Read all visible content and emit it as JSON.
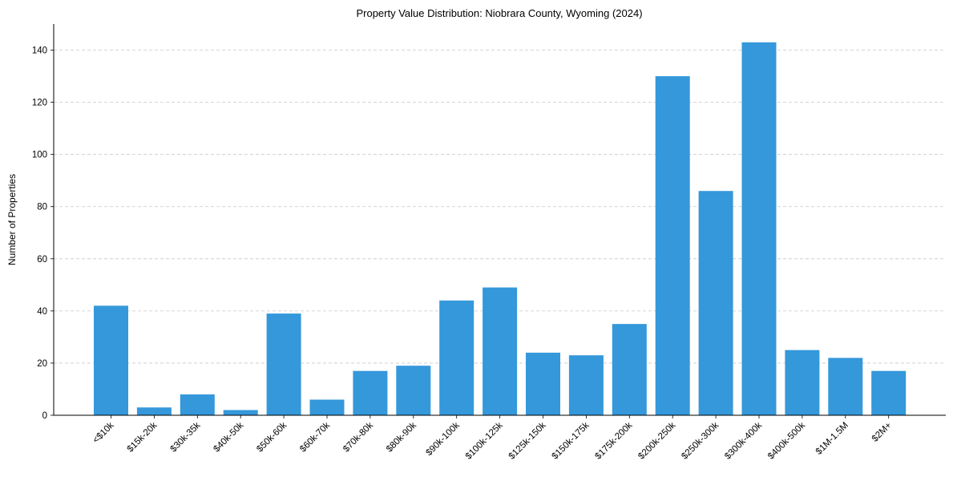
{
  "chart_data": {
    "type": "bar",
    "title": "Property Value Distribution: Niobrara County, Wyoming (2024)",
    "xlabel": "",
    "ylabel": "Number of Properties",
    "categories": [
      "<$10k",
      "$15k-20k",
      "$30k-35k",
      "$40k-50k",
      "$50k-60k",
      "$60k-70k",
      "$70k-80k",
      "$80k-90k",
      "$90k-100k",
      "$100k-125k",
      "$125k-150k",
      "$150k-175k",
      "$175k-200k",
      "$200k-250k",
      "$250k-300k",
      "$300k-400k",
      "$400k-500k",
      "$1M-1.5M",
      "$2M+"
    ],
    "values": [
      42,
      3,
      8,
      2,
      39,
      6,
      17,
      19,
      44,
      49,
      24,
      23,
      35,
      130,
      86,
      143,
      25,
      22,
      17
    ],
    "ylim": [
      0,
      150
    ],
    "yticks": [
      0,
      20,
      40,
      60,
      80,
      100,
      120,
      140
    ],
    "grid": "y-dashed",
    "bar_color": "#3498db",
    "grid_color": "#c8c8c8"
  }
}
